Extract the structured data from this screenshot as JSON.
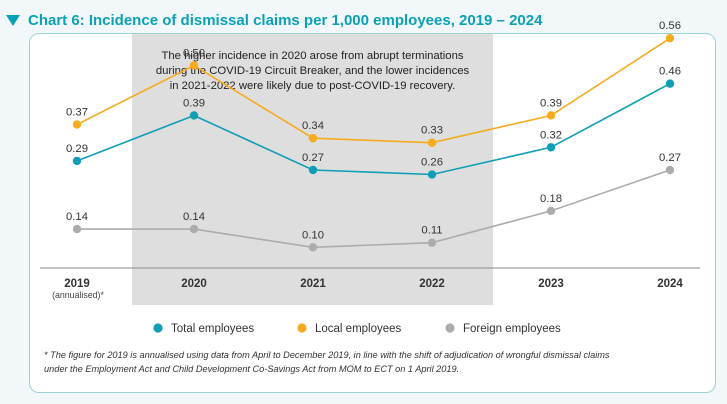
{
  "colors": {
    "total": "#109eb6",
    "local": "#f6ab1c",
    "foreign": "#acacac",
    "title": "#0aa1b5",
    "shade": "#dedede"
  },
  "chart_data": {
    "type": "line",
    "title": "Chart 6: Incidence of dismissal claims per 1,000 employees, 2019 – 2024",
    "categories": [
      "2019",
      "2020",
      "2021",
      "2022",
      "2023",
      "2024"
    ],
    "category_sublabels": [
      "(annualised)*",
      "",
      "",
      "",
      "",
      ""
    ],
    "series": [
      {
        "name": "Local employees",
        "key": "local",
        "values": [
          0.37,
          0.5,
          0.34,
          0.33,
          0.39,
          0.56
        ],
        "labels": [
          "0.37",
          "0.50",
          "0.34",
          "0.33",
          "0.39",
          "0.56"
        ]
      },
      {
        "name": "Total employees",
        "key": "total",
        "values": [
          0.29,
          0.39,
          0.27,
          0.26,
          0.32,
          0.46
        ],
        "labels": [
          "0.29",
          "0.39",
          "0.27",
          "0.26",
          "0.32",
          "0.46"
        ]
      },
      {
        "name": "Foreign employees",
        "key": "foreign",
        "values": [
          0.14,
          0.14,
          0.1,
          0.11,
          0.18,
          0.27
        ],
        "labels": [
          "0.14",
          "0.14",
          "0.10",
          "0.11",
          "0.18",
          "0.27"
        ]
      }
    ],
    "legend_order": [
      "total",
      "local",
      "foreign"
    ],
    "legend": {
      "total": "Total employees",
      "local": "Local employees",
      "foreign": "Foreign employees"
    },
    "ylim": [
      0.05,
      0.6
    ],
    "grid": false,
    "shaded_range": [
      "2020",
      "2022"
    ],
    "annotation": [
      "The higher incidence in 2020 arose from abrupt terminations",
      "during the COVID-19 Circuit Breaker, and the lower incidences",
      "in 2021-2022 were likely due to post-COVID-19 recovery."
    ],
    "footnote": [
      "* The figure for 2019 is annualised using data from April to December 2019, in line with the shift of adjudication of wrongful dismissal claims",
      "under the Employment Act and Child Development Co-Savings Act from MOM to ECT on 1 April 2019."
    ]
  }
}
